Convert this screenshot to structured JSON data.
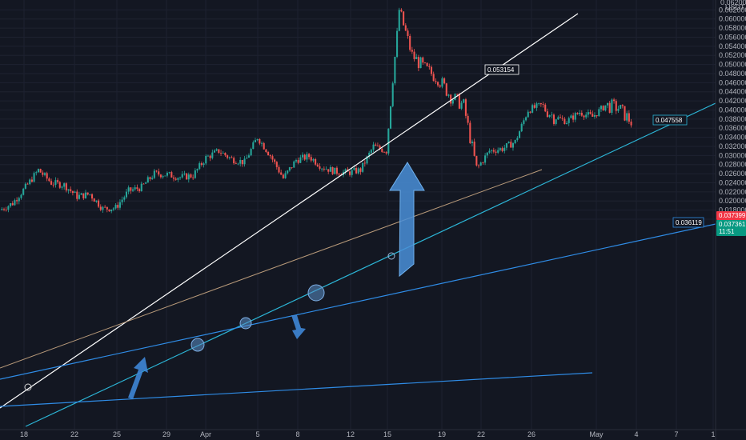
{
  "chart_data": {
    "type": "candlestick",
    "quote_currency": "USDT",
    "y_axis": {
      "range": [
        0.0145,
        0.0645
      ],
      "ticks": [
        "0.016000",
        "0.018000",
        "0.020000",
        "0.022000",
        "0.024000",
        "0.026000",
        "0.028000",
        "0.030000",
        "0.032000",
        "0.034000",
        "0.036000",
        "0.038000",
        "0.040000",
        "0.042000",
        "0.044000",
        "0.046000",
        "0.048000",
        "0.050000",
        "0.052000",
        "0.054000",
        "0.056000",
        "0.058000",
        "0.060000",
        "0.062000"
      ],
      "top_partial_label": "0.062000"
    },
    "x_axis": {
      "ticks": [
        "18",
        "22",
        "25",
        "29",
        "Apr",
        "5",
        "8",
        "12",
        "15",
        "19",
        "22",
        "26",
        "May",
        "4",
        "7",
        "1"
      ]
    },
    "price_markers": {
      "upper": "0.037399",
      "current": "0.037361",
      "countdown": "11:51"
    },
    "trendline_labels": [
      "0.053154",
      "0.047558",
      "0.036119"
    ],
    "colors": {
      "background": "#131722",
      "up": "#26a69a",
      "down": "#ef5350",
      "white_line": "#ffffff",
      "cyan_line": "#2cb5d6",
      "blue_line": "#2f8ce6",
      "tan_line": "#b89a7a",
      "marker_red": "#f23645",
      "marker_green": "#089981"
    },
    "series": [
      {
        "date": "Mar 17",
        "value": 0.018
      },
      {
        "date": "Mar 18",
        "value": 0.0195
      },
      {
        "date": "Mar 19",
        "value": 0.023
      },
      {
        "date": "Mar 20",
        "value": 0.0268
      },
      {
        "date": "Mar 21",
        "value": 0.024
      },
      {
        "date": "Mar 22",
        "value": 0.0235
      },
      {
        "date": "Mar 23",
        "value": 0.021
      },
      {
        "date": "Mar 24",
        "value": 0.0215
      },
      {
        "date": "Mar 25",
        "value": 0.0183
      },
      {
        "date": "Mar 26",
        "value": 0.0185
      },
      {
        "date": "Mar 27",
        "value": 0.0222
      },
      {
        "date": "Mar 28",
        "value": 0.023
      },
      {
        "date": "Mar 29",
        "value": 0.026
      },
      {
        "date": "Mar 30",
        "value": 0.0258
      },
      {
        "date": "Mar 31",
        "value": 0.0252
      },
      {
        "date": "Apr 1",
        "value": 0.0256
      },
      {
        "date": "Apr 2",
        "value": 0.0295
      },
      {
        "date": "Apr 3",
        "value": 0.031
      },
      {
        "date": "Apr 4",
        "value": 0.0292
      },
      {
        "date": "Apr 5",
        "value": 0.0285
      },
      {
        "date": "Apr 6",
        "value": 0.034
      },
      {
        "date": "Apr 7",
        "value": 0.03
      },
      {
        "date": "Apr 8",
        "value": 0.025
      },
      {
        "date": "Apr 9",
        "value": 0.029
      },
      {
        "date": "Apr 10",
        "value": 0.0298
      },
      {
        "date": "Apr 11",
        "value": 0.0275
      },
      {
        "date": "Apr 12",
        "value": 0.0265
      },
      {
        "date": "Apr 13",
        "value": 0.0262
      },
      {
        "date": "Apr 14",
        "value": 0.0268
      },
      {
        "date": "Apr 15",
        "value": 0.032
      },
      {
        "date": "Apr 16",
        "value": 0.031
      },
      {
        "date": "Apr 17",
        "value": 0.062
      },
      {
        "date": "Apr 18",
        "value": 0.052
      },
      {
        "date": "Apr 19",
        "value": 0.049
      },
      {
        "date": "Apr 20",
        "value": 0.047
      },
      {
        "date": "Apr 21",
        "value": 0.043
      },
      {
        "date": "Apr 22",
        "value": 0.041
      },
      {
        "date": "Apr 23",
        "value": 0.027
      },
      {
        "date": "Apr 24",
        "value": 0.031
      },
      {
        "date": "Apr 25",
        "value": 0.0315
      },
      {
        "date": "Apr 26",
        "value": 0.033
      },
      {
        "date": "Apr 27",
        "value": 0.04
      },
      {
        "date": "Apr 28",
        "value": 0.041
      },
      {
        "date": "Apr 29",
        "value": 0.0385
      },
      {
        "date": "Apr 30",
        "value": 0.0375
      },
      {
        "date": "May 1",
        "value": 0.0395
      },
      {
        "date": "May 2",
        "value": 0.0385
      },
      {
        "date": "May 3",
        "value": 0.041
      },
      {
        "date": "May 4",
        "value": 0.0405
      },
      {
        "date": "May 5",
        "value": 0.0374
      }
    ]
  }
}
